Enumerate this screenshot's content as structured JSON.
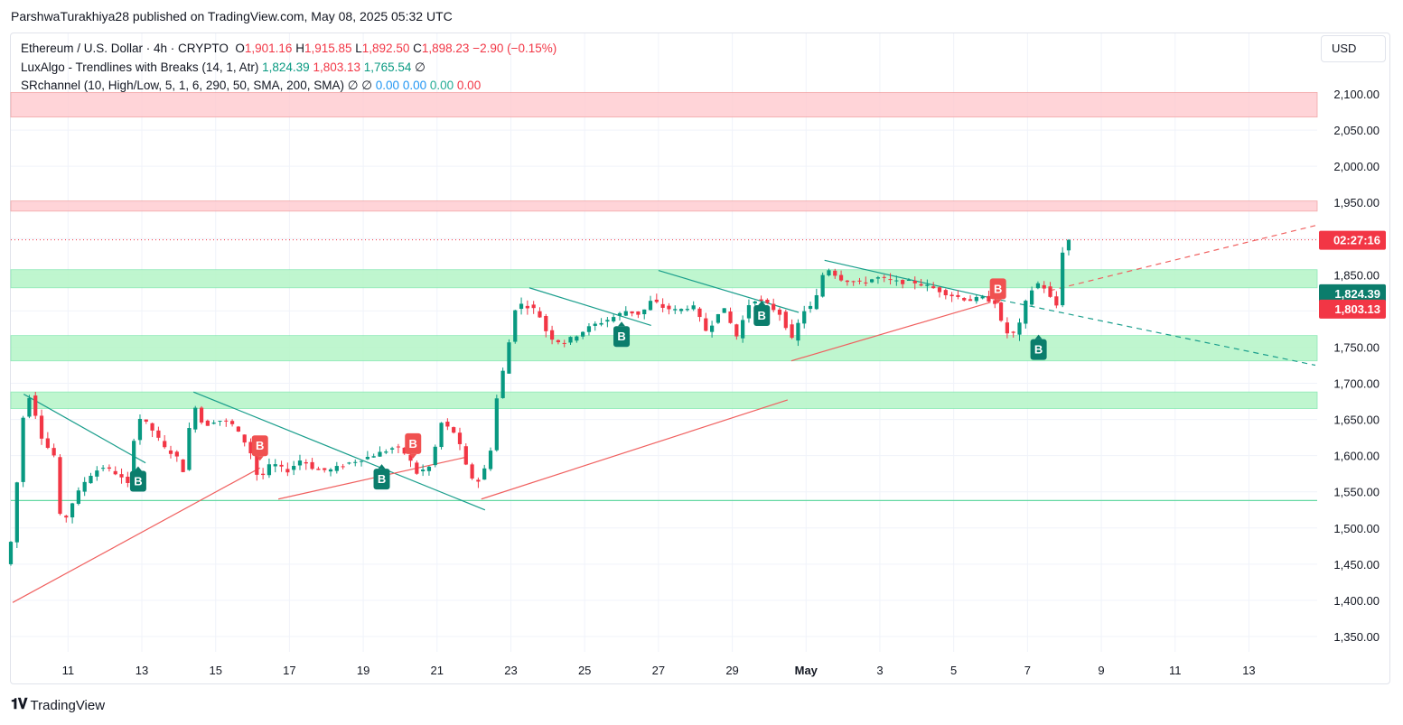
{
  "publisher": "ParshwaTurakhiya28 published on TradingView.com, May 08, 2025 05:32 UTC",
  "legend": {
    "symbol": "Ethereum / U.S. Dollar · 4h · CRYPTO",
    "o_label": "O",
    "o": "1,901.16",
    "h_label": "H",
    "h": "1,915.85",
    "l_label": "L",
    "l": "1,892.50",
    "c_label": "C",
    "c": "1,898.23",
    "change": "−2.90 (−0.15%)",
    "ind1_name": "LuxAlgo - Trendlines with Breaks (14, 1, Atr)",
    "ind1_v1": "1,824.39",
    "ind1_v2": "1,803.13",
    "ind1_v3": "1,765.54",
    "ind1_v4": "∅",
    "ind2_name": "SRchannel (10, High/Low, 5, 1, 6, 290, 50, SMA, 200, SMA)",
    "ind2_v1": "∅",
    "ind2_v2": "∅",
    "ind2_v3": "0.00",
    "ind2_v4": "0.00",
    "ind2_v5": "0.00",
    "ind2_v6": "0.00"
  },
  "currency_button": "USD",
  "price_labels": {
    "countdown": "02:27:16",
    "upper_trend": "1,824.39",
    "lower_trend": "1,803.13"
  },
  "brand": "TradingView",
  "colors": {
    "up": "#089981",
    "down": "#f23645",
    "resistance": "#ffcdd2",
    "support": "#b9f6ca",
    "grid": "#f0f3fa"
  },
  "chart_data": {
    "type": "candlestick",
    "symbol": "ETHUSD",
    "interval": "4h",
    "ylim": [
      1330,
      2130
    ],
    "y_ticks": [
      1350,
      1400,
      1450,
      1500,
      1550,
      1600,
      1650,
      1700,
      1750,
      1800,
      1850,
      1900,
      1950,
      2000,
      2050,
      2100
    ],
    "y_tick_labels": [
      "1,350.00",
      "1,400.00",
      "1,450.00",
      "1,500.00",
      "1,550.00",
      "1,600.00",
      "1,650.00",
      "1,700.00",
      "1,750.00",
      "1,800.00",
      "1,850.00",
      "1,900.00",
      "1,950.00",
      "2,000.00",
      "2,050.00",
      "2,100.00"
    ],
    "x_day_range": [
      9.45,
      44.85
    ],
    "x_ticks": [
      {
        "day": 11,
        "label": "11"
      },
      {
        "day": 13,
        "label": "13"
      },
      {
        "day": 15,
        "label": "15"
      },
      {
        "day": 17,
        "label": "17"
      },
      {
        "day": 19,
        "label": "19"
      },
      {
        "day": 21,
        "label": "21"
      },
      {
        "day": 23,
        "label": "23"
      },
      {
        "day": 25,
        "label": "25"
      },
      {
        "day": 27,
        "label": "27"
      },
      {
        "day": 29,
        "label": "29"
      },
      {
        "day": 31,
        "label": "May"
      },
      {
        "day": 33,
        "label": "3"
      },
      {
        "day": 35,
        "label": "5"
      },
      {
        "day": 37,
        "label": "7"
      },
      {
        "day": 39,
        "label": "9"
      },
      {
        "day": 41,
        "label": "11"
      },
      {
        "day": 43,
        "label": "13"
      }
    ],
    "zones": [
      {
        "type": "resistance",
        "from": 2068,
        "to": 2102
      },
      {
        "type": "resistance",
        "from": 1938,
        "to": 1952
      },
      {
        "type": "support",
        "from": 1832,
        "to": 1857
      },
      {
        "type": "support",
        "from": 1731,
        "to": 1766
      },
      {
        "type": "support",
        "from": 1665,
        "to": 1688
      }
    ],
    "support_line": 1538,
    "current_price": 1898.23,
    "trendlines": [
      {
        "color": "teal",
        "style": "solid",
        "from": [
          9.8,
          1685
        ],
        "to": [
          13.1,
          1590
        ]
      },
      {
        "color": "teal",
        "style": "solid",
        "from": [
          14.4,
          1688
        ],
        "to": [
          22.3,
          1525
        ]
      },
      {
        "color": "teal",
        "style": "solid",
        "from": [
          23.5,
          1832
        ],
        "to": [
          26.8,
          1780
        ]
      },
      {
        "color": "teal",
        "style": "solid",
        "from": [
          27.0,
          1856
        ],
        "to": [
          30.8,
          1798
        ]
      },
      {
        "color": "teal",
        "style": "solid",
        "from": [
          31.5,
          1870
        ],
        "to": [
          36.0,
          1818
        ]
      },
      {
        "color": "teal",
        "style": "dashed",
        "from": [
          36.0,
          1818
        ],
        "to": [
          44.8,
          1725
        ]
      },
      {
        "color": "red",
        "style": "solid",
        "from": [
          9.5,
          1397
        ],
        "to": [
          16.2,
          1583
        ]
      },
      {
        "color": "red",
        "style": "solid",
        "from": [
          16.7,
          1540
        ],
        "to": [
          21.8,
          1598
        ]
      },
      {
        "color": "red",
        "style": "solid",
        "from": [
          22.2,
          1540
        ],
        "to": [
          30.5,
          1677
        ]
      },
      {
        "color": "red",
        "style": "solid",
        "from": [
          30.6,
          1731
        ],
        "to": [
          36.0,
          1812
        ]
      },
      {
        "color": "red",
        "style": "dashed",
        "from": [
          37.6,
          1828
        ],
        "to": [
          44.8,
          1918
        ]
      }
    ],
    "signals": [
      {
        "day": 12.9,
        "price": 1564,
        "type": "up",
        "text": "B"
      },
      {
        "day": 16.2,
        "price": 1613,
        "type": "down",
        "text": "B"
      },
      {
        "day": 19.5,
        "price": 1567,
        "type": "up",
        "text": "B"
      },
      {
        "day": 20.35,
        "price": 1616,
        "type": "down",
        "text": "B"
      },
      {
        "day": 26.0,
        "price": 1764,
        "type": "up",
        "text": "B"
      },
      {
        "day": 29.8,
        "price": 1793,
        "type": "up",
        "text": "B"
      },
      {
        "day": 36.2,
        "price": 1830,
        "type": "down",
        "text": "B"
      },
      {
        "day": 37.3,
        "price": 1746,
        "type": "up",
        "text": "B"
      }
    ],
    "key_points": [
      [
        9.45,
        1450
      ],
      [
        9.6,
        1505
      ],
      [
        9.85,
        1650
      ],
      [
        10.05,
        1685
      ],
      [
        10.4,
        1620
      ],
      [
        10.7,
        1600
      ],
      [
        10.9,
        1500
      ],
      [
        11.2,
        1535
      ],
      [
        11.6,
        1570
      ],
      [
        12.0,
        1585
      ],
      [
        12.4,
        1575
      ],
      [
        12.7,
        1560
      ],
      [
        12.95,
        1655
      ],
      [
        13.3,
        1640
      ],
      [
        13.7,
        1610
      ],
      [
        14.0,
        1600
      ],
      [
        14.25,
        1575
      ],
      [
        14.45,
        1680
      ],
      [
        14.75,
        1640
      ],
      [
        15.1,
        1650
      ],
      [
        15.5,
        1645
      ],
      [
        16.0,
        1610
      ],
      [
        16.25,
        1565
      ],
      [
        16.6,
        1590
      ],
      [
        17.0,
        1578
      ],
      [
        17.4,
        1595
      ],
      [
        17.8,
        1580
      ],
      [
        18.2,
        1580
      ],
      [
        18.7,
        1590
      ],
      [
        19.2,
        1598
      ],
      [
        19.6,
        1605
      ],
      [
        19.95,
        1612
      ],
      [
        20.3,
        1600
      ],
      [
        20.5,
        1575
      ],
      [
        20.9,
        1585
      ],
      [
        21.2,
        1645
      ],
      [
        21.6,
        1630
      ],
      [
        21.9,
        1580
      ],
      [
        22.15,
        1560
      ],
      [
        22.5,
        1595
      ],
      [
        22.75,
        1700
      ],
      [
        23.0,
        1735
      ],
      [
        23.1,
        1800
      ],
      [
        23.4,
        1810
      ],
      [
        23.8,
        1800
      ],
      [
        24.1,
        1765
      ],
      [
        24.5,
        1755
      ],
      [
        24.9,
        1768
      ],
      [
        25.3,
        1780
      ],
      [
        25.8,
        1790
      ],
      [
        26.2,
        1800
      ],
      [
        26.6,
        1795
      ],
      [
        26.9,
        1815
      ],
      [
        27.2,
        1805
      ],
      [
        27.6,
        1800
      ],
      [
        28.0,
        1808
      ],
      [
        28.4,
        1770
      ],
      [
        28.8,
        1808
      ],
      [
        29.2,
        1765
      ],
      [
        29.6,
        1818
      ],
      [
        30.0,
        1810
      ],
      [
        30.4,
        1795
      ],
      [
        30.7,
        1760
      ],
      [
        31.0,
        1800
      ],
      [
        31.3,
        1808
      ],
      [
        31.6,
        1862
      ],
      [
        32.0,
        1845
      ],
      [
        32.5,
        1838
      ],
      [
        33.0,
        1846
      ],
      [
        33.5,
        1840
      ],
      [
        34.0,
        1840
      ],
      [
        34.5,
        1832
      ],
      [
        35.0,
        1822
      ],
      [
        35.5,
        1815
      ],
      [
        35.9,
        1818
      ],
      [
        36.2,
        1812
      ],
      [
        36.45,
        1770
      ],
      [
        36.8,
        1768
      ],
      [
        37.0,
        1808
      ],
      [
        37.3,
        1840
      ],
      [
        37.6,
        1830
      ],
      [
        37.85,
        1800
      ],
      [
        38.05,
        1890
      ],
      [
        38.2,
        1898
      ]
    ]
  }
}
